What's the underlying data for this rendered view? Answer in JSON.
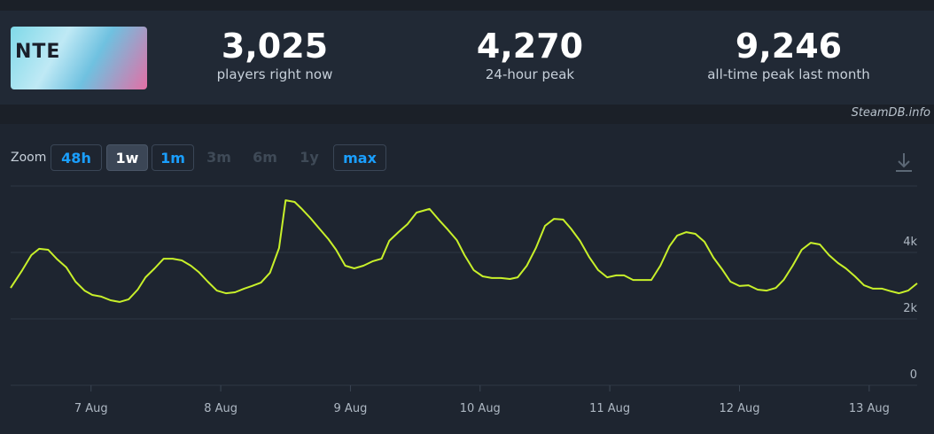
{
  "thumbnail": {
    "label": "NTE"
  },
  "stats": [
    {
      "value": "3,025",
      "label": "players right now"
    },
    {
      "value": "4,270",
      "label": "24-hour peak"
    },
    {
      "value": "9,246",
      "label": "all-time peak last month"
    }
  ],
  "watermark": "SteamDB.info",
  "zoom": {
    "label": "Zoom",
    "buttons": [
      "48h",
      "1w",
      "1m",
      "3m",
      "6m",
      "1y",
      "max"
    ]
  },
  "chart_data": {
    "type": "line",
    "color": "#c8f02a",
    "grid": true,
    "x": [
      6.38,
      6.47,
      6.54,
      6.6,
      6.67,
      6.74,
      6.81,
      6.88,
      6.95,
      7.01,
      7.08,
      7.15,
      7.22,
      7.29,
      7.36,
      7.42,
      7.49,
      7.56,
      7.63,
      7.7,
      7.77,
      7.83,
      7.9,
      7.97,
      8.04,
      8.11,
      8.18,
      8.24,
      8.31,
      8.38,
      8.45,
      8.5,
      8.57,
      8.62,
      8.69,
      8.76,
      8.83,
      8.89,
      8.96,
      9.03,
      9.1,
      9.17,
      9.24,
      9.3,
      9.37,
      9.44,
      9.51,
      9.61,
      9.68,
      9.75,
      9.82,
      9.88,
      9.95,
      10.02,
      10.09,
      10.16,
      10.23,
      10.29,
      10.36,
      10.43,
      10.5,
      10.57,
      10.64,
      10.7,
      10.77,
      10.84,
      10.91,
      10.98,
      11.05,
      11.11,
      11.18,
      11.25,
      11.32,
      11.39,
      11.46,
      11.52,
      11.59,
      11.66,
      11.73,
      11.8,
      11.87,
      11.93,
      12.0,
      12.07,
      12.14,
      12.21,
      12.28,
      12.34,
      12.41,
      12.48,
      12.55,
      12.62,
      12.69,
      12.76,
      12.82,
      12.89,
      12.96,
      13.03,
      13.1,
      13.17,
      13.23,
      13.3,
      13.37
    ],
    "values": [
      2930,
      3470,
      3920,
      4110,
      4080,
      3790,
      3550,
      3120,
      2850,
      2720,
      2670,
      2560,
      2510,
      2590,
      2880,
      3250,
      3520,
      3810,
      3810,
      3760,
      3600,
      3410,
      3120,
      2850,
      2770,
      2800,
      2910,
      2990,
      3090,
      3390,
      4130,
      5570,
      5520,
      5330,
      5040,
      4720,
      4400,
      4080,
      3600,
      3520,
      3600,
      3730,
      3810,
      4350,
      4610,
      4850,
      5200,
      5310,
      4990,
      4690,
      4370,
      3920,
      3470,
      3280,
      3230,
      3230,
      3200,
      3250,
      3600,
      4130,
      4800,
      5010,
      4990,
      4720,
      4350,
      3870,
      3470,
      3250,
      3310,
      3310,
      3170,
      3170,
      3170,
      3600,
      4190,
      4510,
      4610,
      4560,
      4320,
      3840,
      3470,
      3120,
      2990,
      3010,
      2880,
      2850,
      2930,
      3170,
      3600,
      4080,
      4290,
      4240,
      3920,
      3680,
      3520,
      3280,
      3010,
      2910,
      2910,
      2830,
      2770,
      2850,
      3070
    ],
    "xlim": [
      6.38,
      13.37
    ],
    "xticks": [
      {
        "value": 7,
        "label": "7 Aug"
      },
      {
        "value": 8,
        "label": "8 Aug"
      },
      {
        "value": 9,
        "label": "9 Aug"
      },
      {
        "value": 10,
        "label": "10 Aug"
      },
      {
        "value": 11,
        "label": "11 Aug"
      },
      {
        "value": 12,
        "label": "12 Aug"
      },
      {
        "value": 13,
        "label": "13 Aug"
      }
    ],
    "ylim": [
      0,
      6000
    ],
    "yticks": [
      0,
      {
        "value": 2000,
        "label": "2k"
      },
      {
        "value": 4000,
        "label": "4k"
      }
    ]
  }
}
